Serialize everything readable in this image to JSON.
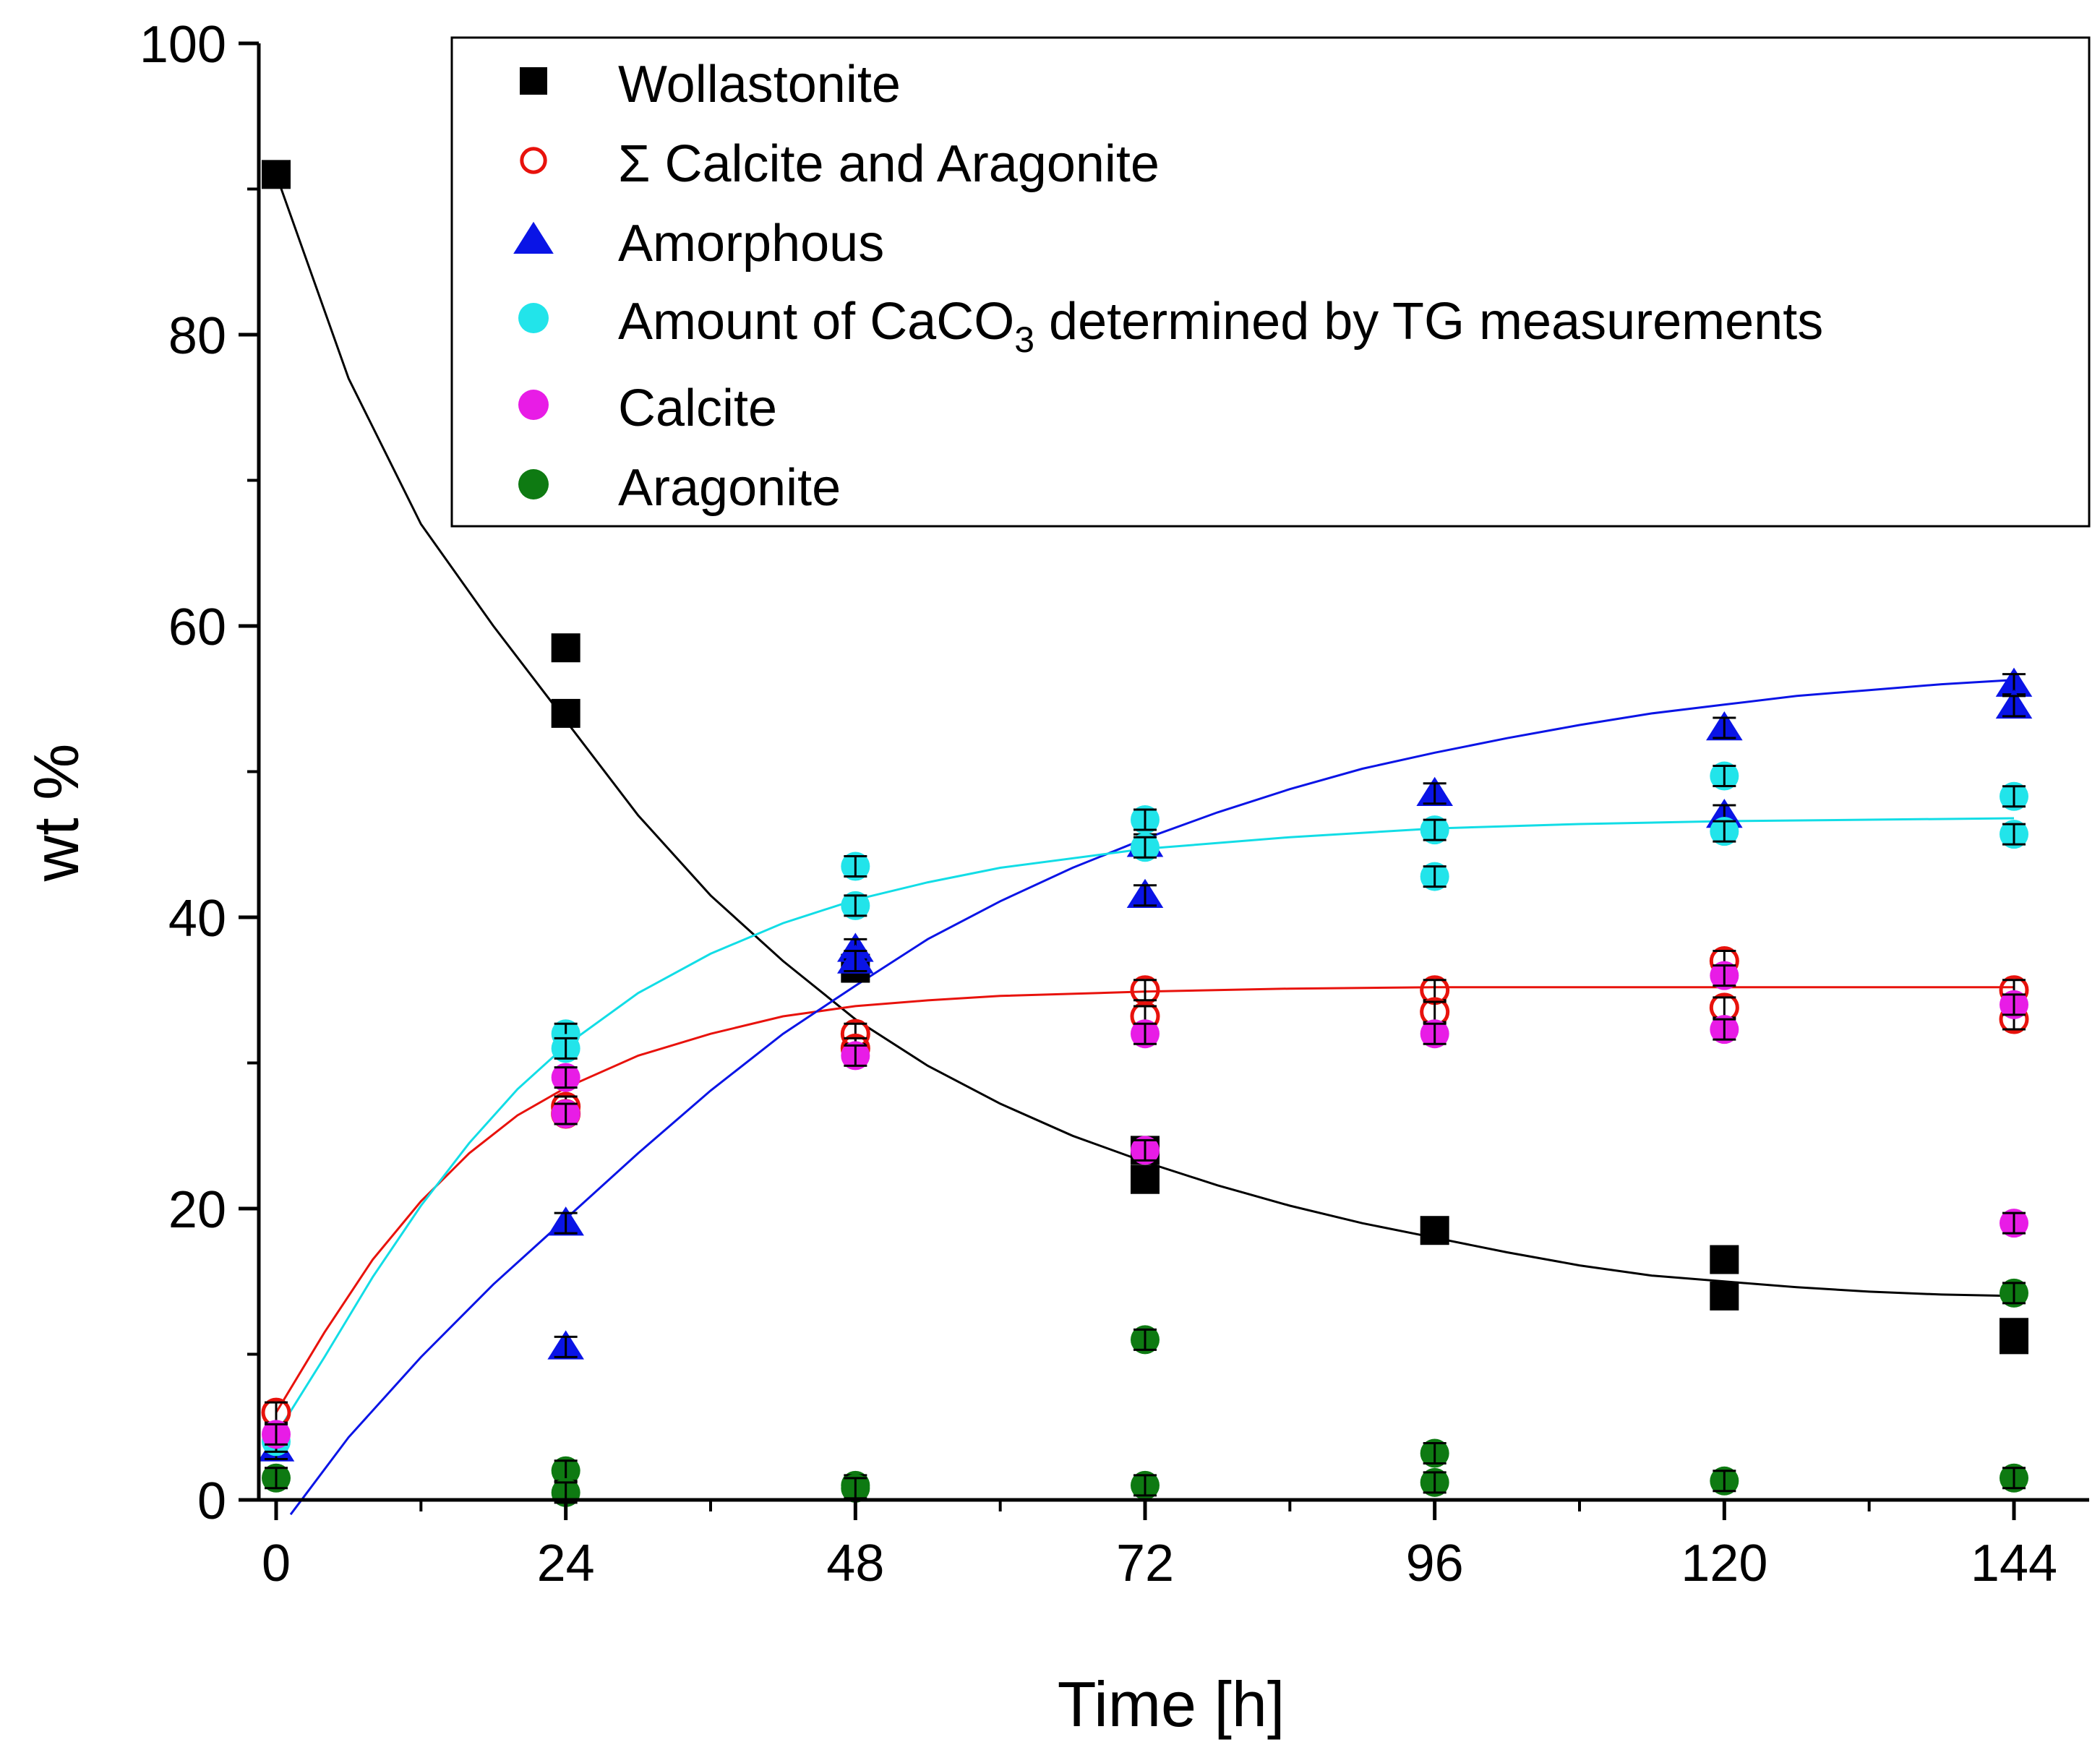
{
  "chart_data": {
    "type": "scatter",
    "title": "",
    "xlabel": "Time [h]",
    "ylabel": "wt %",
    "xlim": [
      -2,
      148
    ],
    "ylim": [
      0,
      100
    ],
    "x_ticks": [
      0,
      24,
      48,
      72,
      96,
      120,
      144
    ],
    "y_ticks": [
      0,
      20,
      40,
      60,
      80,
      100
    ],
    "legend_position": "top-right",
    "series": [
      {
        "name": "Wollastonite",
        "marker": "square-filled",
        "color": "#000000",
        "points": [
          [
            0,
            91
          ],
          [
            24,
            58.5
          ],
          [
            24,
            54
          ],
          [
            48,
            36.5
          ],
          [
            72,
            24
          ],
          [
            72,
            22
          ],
          [
            96,
            18.5
          ],
          [
            120,
            16.5
          ],
          [
            120,
            14
          ],
          [
            144,
            11
          ],
          [
            144,
            11.5
          ]
        ],
        "fit": [
          [
            0,
            91
          ],
          [
            6,
            77
          ],
          [
            12,
            67
          ],
          [
            18,
            60
          ],
          [
            24,
            53.5
          ],
          [
            30,
            47
          ],
          [
            36,
            41.5
          ],
          [
            42,
            37
          ],
          [
            48,
            33
          ],
          [
            54,
            29.8
          ],
          [
            60,
            27.2
          ],
          [
            66,
            25
          ],
          [
            72,
            23.2
          ],
          [
            78,
            21.6
          ],
          [
            84,
            20.2
          ],
          [
            90,
            19
          ],
          [
            96,
            18
          ],
          [
            102,
            17
          ],
          [
            108,
            16.1
          ],
          [
            114,
            15.4
          ],
          [
            120,
            15
          ],
          [
            126,
            14.6
          ],
          [
            132,
            14.3
          ],
          [
            138,
            14.1
          ],
          [
            144,
            14
          ]
        ]
      },
      {
        "name": "Σ Calcite and Aragonite",
        "marker": "circle-open",
        "color": "#e8120c",
        "points": [
          [
            0,
            6
          ],
          [
            24,
            27
          ],
          [
            24,
            26.5
          ],
          [
            48,
            32
          ],
          [
            48,
            31
          ],
          [
            72,
            35
          ],
          [
            72,
            33.2
          ],
          [
            96,
            35
          ],
          [
            96,
            33.5
          ],
          [
            120,
            37
          ],
          [
            120,
            33.8
          ],
          [
            144,
            35
          ],
          [
            144,
            33
          ]
        ],
        "fit": [
          [
            0,
            6
          ],
          [
            4,
            11.5
          ],
          [
            8,
            16.5
          ],
          [
            12,
            20.5
          ],
          [
            16,
            23.8
          ],
          [
            20,
            26.4
          ],
          [
            24,
            28.3
          ],
          [
            30,
            30.5
          ],
          [
            36,
            32
          ],
          [
            42,
            33.2
          ],
          [
            48,
            33.9
          ],
          [
            54,
            34.3
          ],
          [
            60,
            34.6
          ],
          [
            72,
            34.9
          ],
          [
            84,
            35.1
          ],
          [
            96,
            35.2
          ],
          [
            120,
            35.2
          ],
          [
            144,
            35.2
          ]
        ]
      },
      {
        "name": "Amorphous",
        "marker": "triangle-filled",
        "color": "#0a14e6",
        "points": [
          [
            0,
            3.5
          ],
          [
            24,
            19
          ],
          [
            24,
            10.5
          ],
          [
            48,
            37.8
          ],
          [
            48,
            37
          ],
          [
            72,
            45
          ],
          [
            72,
            41.5
          ],
          [
            96,
            48.5
          ],
          [
            120,
            53
          ],
          [
            120,
            47
          ],
          [
            144,
            56
          ],
          [
            144,
            54.5
          ]
        ],
        "fit": [
          [
            1.2,
            -1
          ],
          [
            6,
            4.3
          ],
          [
            12,
            9.8
          ],
          [
            18,
            14.8
          ],
          [
            24,
            19.3
          ],
          [
            30,
            23.8
          ],
          [
            36,
            28.1
          ],
          [
            42,
            32
          ],
          [
            48,
            35.3
          ],
          [
            54,
            38.5
          ],
          [
            60,
            41.1
          ],
          [
            66,
            43.4
          ],
          [
            72,
            45.4
          ],
          [
            78,
            47.2
          ],
          [
            84,
            48.8
          ],
          [
            90,
            50.2
          ],
          [
            96,
            51.3
          ],
          [
            102,
            52.3
          ],
          [
            108,
            53.2
          ],
          [
            114,
            54
          ],
          [
            120,
            54.6
          ],
          [
            126,
            55.2
          ],
          [
            132,
            55.6
          ],
          [
            138,
            56
          ],
          [
            144,
            56.3
          ]
        ]
      },
      {
        "name": "Amount of CaCO3 determined by TG measurements",
        "legend_parts": [
          "Amount of CaCO",
          "3",
          " determined by TG measurements"
        ],
        "marker": "circle-filled",
        "color": "#22e4ea",
        "points": [
          [
            0,
            4
          ],
          [
            24,
            32
          ],
          [
            24,
            31
          ],
          [
            48,
            43.5
          ],
          [
            48,
            40.8
          ],
          [
            72,
            46.7
          ],
          [
            72,
            44.8
          ],
          [
            96,
            46
          ],
          [
            96,
            42.8
          ],
          [
            120,
            49.7
          ],
          [
            120,
            45.9
          ],
          [
            144,
            48.3
          ],
          [
            144,
            45.7
          ]
        ],
        "fit": [
          [
            0,
            4.5
          ],
          [
            4,
            9.8
          ],
          [
            8,
            15.3
          ],
          [
            12,
            20.2
          ],
          [
            16,
            24.5
          ],
          [
            20,
            28.2
          ],
          [
            24,
            31.2
          ],
          [
            30,
            34.8
          ],
          [
            36,
            37.5
          ],
          [
            42,
            39.6
          ],
          [
            48,
            41.2
          ],
          [
            54,
            42.4
          ],
          [
            60,
            43.4
          ],
          [
            72,
            44.7
          ],
          [
            84,
            45.5
          ],
          [
            96,
            46.1
          ],
          [
            108,
            46.4
          ],
          [
            120,
            46.6
          ],
          [
            132,
            46.7
          ],
          [
            144,
            46.8
          ]
        ]
      },
      {
        "name": "Calcite",
        "marker": "circle-filled",
        "color": "#e81ce6",
        "points": [
          [
            0,
            4.5
          ],
          [
            24,
            29
          ],
          [
            24,
            26.5
          ],
          [
            48,
            30.5
          ],
          [
            72,
            32
          ],
          [
            72,
            24
          ],
          [
            96,
            32
          ],
          [
            120,
            36
          ],
          [
            120,
            32.3
          ],
          [
            144,
            34
          ],
          [
            144,
            19
          ]
        ]
      },
      {
        "name": "Aragonite",
        "marker": "circle-filled",
        "color": "#0e7a12",
        "points": [
          [
            0,
            1.5
          ],
          [
            24,
            2
          ],
          [
            24,
            0.5
          ],
          [
            48,
            1
          ],
          [
            48,
            0.8
          ],
          [
            72,
            11
          ],
          [
            72,
            1
          ],
          [
            96,
            3.2
          ],
          [
            96,
            1.2
          ],
          [
            120,
            1.3
          ],
          [
            144,
            14.2
          ],
          [
            144,
            1.5
          ]
        ]
      }
    ]
  }
}
